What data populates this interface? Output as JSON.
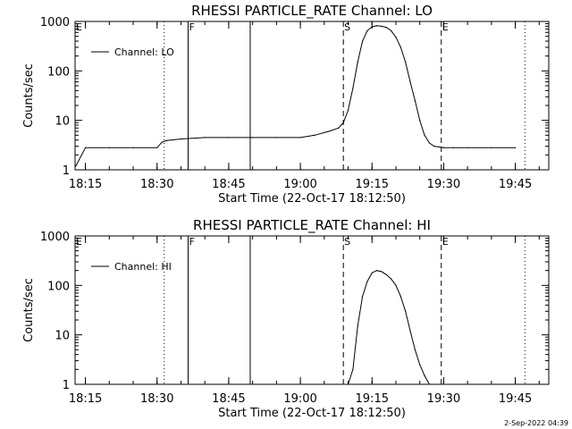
{
  "footer": {
    "timestamp": "2-Sep-2022 04:39"
  },
  "chart_data": [
    {
      "type": "line",
      "title": "RHESSI PARTICLE_RATE Channel: LO",
      "xlabel": "Start Time (22-Oct-17 18:12:50)",
      "ylabel": "Counts/sec",
      "y_scale": "log",
      "ylim": [
        1,
        1000
      ],
      "xlim": [
        "18:12:50",
        "19:52:00"
      ],
      "x_ticks": [
        "18:15",
        "18:30",
        "18:45",
        "19:00",
        "19:15",
        "19:30",
        "19:45"
      ],
      "y_ticks": [
        "1",
        "10",
        "100",
        "1000"
      ],
      "legend": {
        "position": "top-left",
        "entries": [
          "Channel: LO"
        ]
      },
      "markers": [
        {
          "label": "E",
          "time": "18:12:50",
          "style": "dotted"
        },
        {
          "label": "",
          "time": "18:31:30",
          "style": "dotted"
        },
        {
          "label": "F",
          "time": "18:36:30",
          "style": "solid"
        },
        {
          "label": "",
          "time": "18:49:30",
          "style": "solid"
        },
        {
          "label": "S",
          "time": "19:09:00",
          "style": "dashed"
        },
        {
          "label": "E",
          "time": "19:29:30",
          "style": "dashed"
        },
        {
          "label": "",
          "time": "19:47:00",
          "style": "dotted"
        }
      ],
      "series": [
        {
          "name": "Channel: LO",
          "x": [
            "18:13",
            "18:15",
            "18:20",
            "18:25",
            "18:30",
            "18:31",
            "18:32",
            "18:35",
            "18:40",
            "18:45",
            "18:50",
            "18:55",
            "19:00",
            "19:03",
            "19:06",
            "19:08",
            "19:09",
            "19:10",
            "19:11",
            "19:12",
            "19:13",
            "19:14",
            "19:15",
            "19:16",
            "19:17",
            "19:18",
            "19:19",
            "19:20",
            "19:21",
            "19:22",
            "19:23",
            "19:24",
            "19:25",
            "19:26",
            "19:27",
            "19:28",
            "19:29",
            "19:30",
            "19:32",
            "19:35",
            "19:40",
            "19:45"
          ],
          "values": [
            1.2,
            2.8,
            2.8,
            2.8,
            2.8,
            3.6,
            3.9,
            4.2,
            4.5,
            4.5,
            4.5,
            4.5,
            4.5,
            5.0,
            6.0,
            7.0,
            9.0,
            16,
            45,
            150,
            400,
            650,
            780,
            820,
            800,
            760,
            650,
            480,
            300,
            150,
            60,
            25,
            10,
            5.0,
            3.5,
            3.0,
            2.9,
            2.8,
            2.8,
            2.8,
            2.8,
            2.8
          ]
        }
      ]
    },
    {
      "type": "line",
      "title": "RHESSI PARTICLE_RATE Channel: HI",
      "xlabel": "Start Time (22-Oct-17 18:12:50)",
      "ylabel": "Counts/sec",
      "y_scale": "log",
      "ylim": [
        1,
        1000
      ],
      "xlim": [
        "18:12:50",
        "19:52:00"
      ],
      "x_ticks": [
        "18:15",
        "18:30",
        "18:45",
        "19:00",
        "19:15",
        "19:30",
        "19:45"
      ],
      "y_ticks": [
        "1",
        "10",
        "100",
        "1000"
      ],
      "legend": {
        "position": "top-left",
        "entries": [
          "Channel: HI"
        ]
      },
      "markers": [
        {
          "label": "E",
          "time": "18:12:50",
          "style": "dotted"
        },
        {
          "label": "",
          "time": "18:31:30",
          "style": "dotted"
        },
        {
          "label": "F",
          "time": "18:36:30",
          "style": "solid"
        },
        {
          "label": "",
          "time": "18:49:30",
          "style": "solid"
        },
        {
          "label": "S",
          "time": "19:09:00",
          "style": "dashed"
        },
        {
          "label": "E",
          "time": "19:29:30",
          "style": "dashed"
        },
        {
          "label": "",
          "time": "19:47:00",
          "style": "dotted"
        }
      ],
      "series": [
        {
          "name": "Channel: HI",
          "x": [
            "19:10",
            "19:11",
            "19:12",
            "19:13",
            "19:14",
            "19:15",
            "19:16",
            "19:17",
            "19:18",
            "19:19",
            "19:20",
            "19:21",
            "19:22",
            "19:23",
            "19:24",
            "19:25",
            "19:26",
            "19:27"
          ],
          "values": [
            1,
            2,
            15,
            60,
            120,
            180,
            200,
            190,
            165,
            135,
            100,
            60,
            30,
            12,
            5,
            2.5,
            1.5,
            1
          ]
        }
      ]
    }
  ]
}
